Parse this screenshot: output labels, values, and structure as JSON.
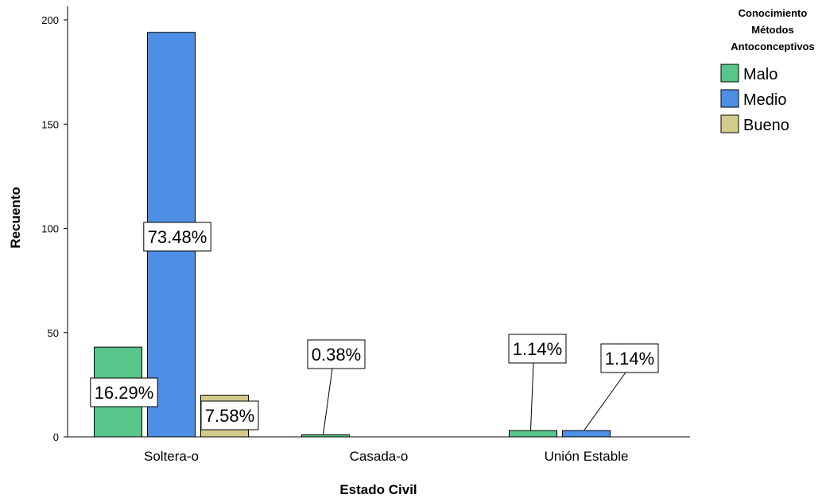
{
  "chart_data": {
    "type": "bar",
    "xlabel": "Estado Civil",
    "ylabel": "Recuento",
    "ylim": [
      0,
      200
    ],
    "yticks": [
      0,
      50,
      100,
      150,
      200
    ],
    "categories": [
      "Soltera-o",
      "Casada-o",
      "Unión Estable"
    ],
    "series": [
      {
        "name": "Malo",
        "color": "#58c68a",
        "values": [
          43,
          1,
          3
        ],
        "labels": [
          "16.29%",
          "0.38%",
          "1.14%"
        ]
      },
      {
        "name": "Medio",
        "color": "#4e8fe6",
        "values": [
          194,
          0,
          3
        ],
        "labels": [
          "73.48%",
          "",
          "1.14%"
        ]
      },
      {
        "name": "Bueno",
        "color": "#d2cb8b",
        "values": [
          20,
          0,
          0
        ],
        "labels": [
          "7.58%",
          "",
          ""
        ]
      }
    ],
    "legend": {
      "title": [
        "Conocimiento",
        "Métodos",
        "Antoconceptivos"
      ],
      "position": "top-right"
    },
    "grid": false
  }
}
